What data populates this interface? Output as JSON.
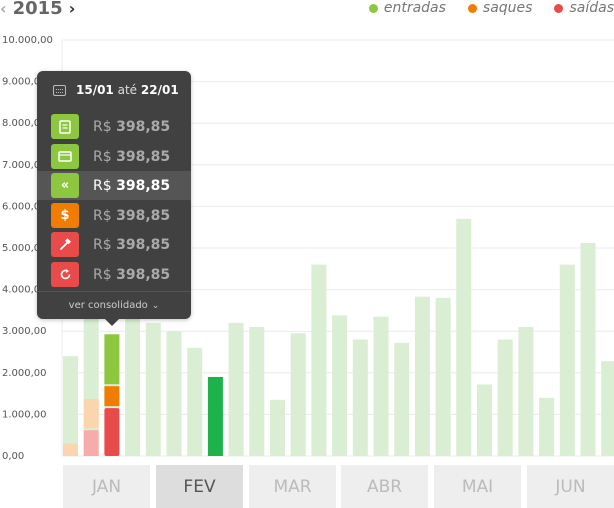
{
  "header": {
    "year": "2015",
    "prev_icon": "chevron-left-icon",
    "next_icon": "chevron-right-icon"
  },
  "legend": [
    {
      "label": "entradas",
      "color": "#8dc63f"
    },
    {
      "label": "saques",
      "color": "#f07c00"
    },
    {
      "label": "saídas",
      "color": "#e94b4b"
    }
  ],
  "chart_data": {
    "type": "bar",
    "ylim": [
      0,
      10000
    ],
    "y_ticks": [
      "0,00",
      "1.000,00",
      "2.000,00",
      "3.000,00",
      "4.000,00",
      "5.000,00",
      "6.000,00",
      "7.000,00",
      "8.000,00",
      "9.000,00",
      "10.000,00"
    ],
    "background_values": [
      2400,
      3500,
      2800,
      3500,
      3200,
      3000,
      2600,
      1900,
      3200,
      3100,
      1350,
      2950,
      4600,
      3380,
      2800,
      3350,
      2720,
      3830,
      3800,
      5700,
      1720,
      2800,
      3100,
      1400,
      4600,
      5120,
      2280
    ],
    "stacked_bars": [
      {
        "index": 0,
        "saidas": 0,
        "saques": 300
      },
      {
        "index": 1,
        "saidas": 620,
        "saques": 700
      },
      {
        "index": 2,
        "saidas": 1150,
        "saques": 480,
        "entradas": 1200
      }
    ],
    "highlighted_bar": {
      "index": 7,
      "value": 1900
    },
    "colors": {
      "background": "#d9eed3",
      "entradas": "#8dc63f",
      "saques": "#f07c00",
      "saidas": "#e94b4b",
      "saques_light": "#fbd5ad",
      "saidas_light": "#f7acac",
      "highlight": "#1db34a"
    }
  },
  "months": [
    {
      "label": "JAN",
      "active": false
    },
    {
      "label": "FEV",
      "active": true
    },
    {
      "label": "MAR",
      "active": false
    },
    {
      "label": "ABR",
      "active": false
    },
    {
      "label": "MAI",
      "active": false
    },
    {
      "label": "JUN",
      "active": false
    }
  ],
  "tooltip": {
    "date_from": "15/01",
    "date_sep": "até",
    "date_to": "22/01",
    "rows": [
      {
        "icon": "document-icon",
        "color": "#8dc63f",
        "currency": "R$",
        "value": "398,85",
        "selected": false
      },
      {
        "icon": "card-icon",
        "color": "#8dc63f",
        "currency": "R$",
        "value": "398,85",
        "selected": false
      },
      {
        "icon": "double-chevron-left-icon",
        "color": "#8dc63f",
        "currency": "R$",
        "value": "398,85",
        "selected": true
      },
      {
        "icon": "dollar-icon",
        "color": "#f07c00",
        "currency": "R$",
        "value": "398,85",
        "selected": false
      },
      {
        "icon": "hammer-icon",
        "color": "#e94b4b",
        "currency": "R$",
        "value": "398,85",
        "selected": false
      },
      {
        "icon": "refresh-icon",
        "color": "#e94b4b",
        "currency": "R$",
        "value": "398,85",
        "selected": false
      }
    ],
    "footer_label": "ver consolidado"
  }
}
